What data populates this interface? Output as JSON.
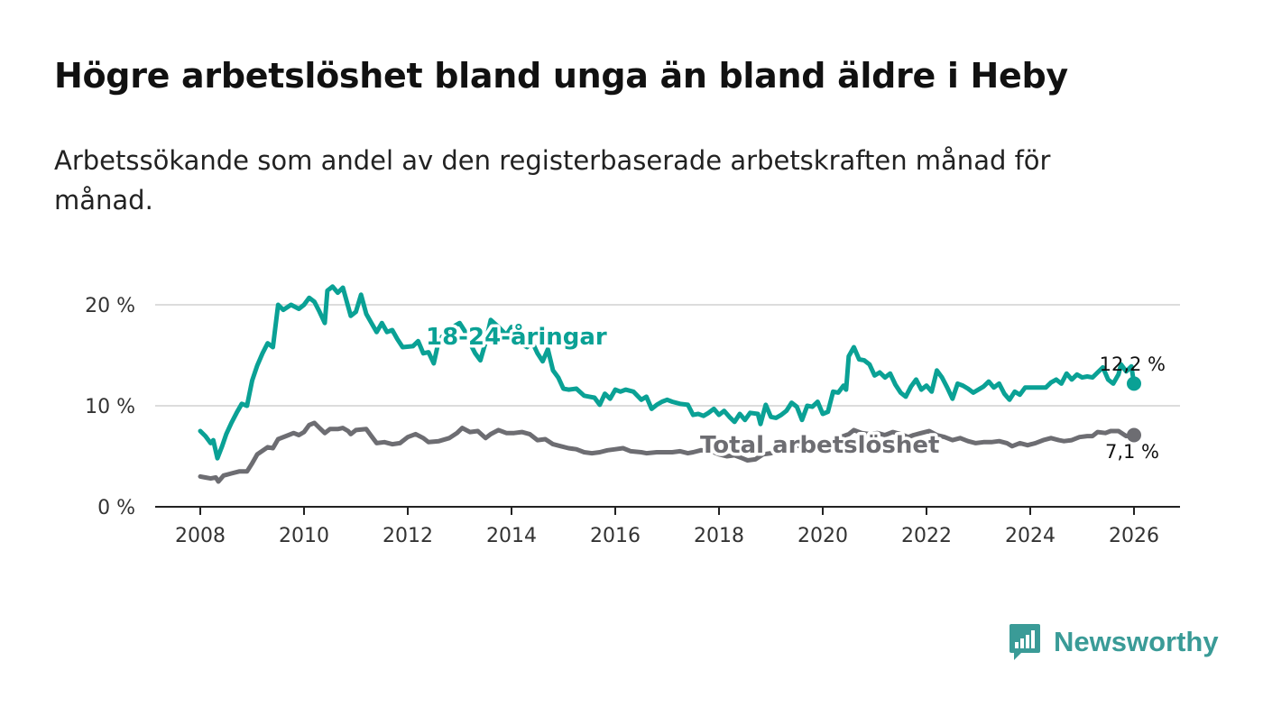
{
  "title": "Högre arbetslöshet bland unga än bland äldre i Heby",
  "subtitle": "Arbetssökande som andel av den registerbaserade arbetskraften månad för månad.",
  "brand": {
    "name": "Newsworthy",
    "color": "#3a9b97",
    "icon": "bar-chart-speech-bubble-icon"
  },
  "chart_data": {
    "type": "line",
    "x_unit": "year",
    "xlim": [
      2008,
      2026
    ],
    "ylim": [
      0,
      20
    ],
    "x_ticks": [
      "2008",
      "2010",
      "2012",
      "2014",
      "2016",
      "2018",
      "2020",
      "2022",
      "2024",
      "2026"
    ],
    "y_ticks": [
      "0 %",
      "10 %",
      "20 %"
    ],
    "y_tick_values": [
      0,
      10,
      20
    ],
    "grid": true,
    "series": [
      {
        "name": "18-24-åringar",
        "color": "#0aa195",
        "end_label": "12,2 %",
        "points": [
          [
            2008.0,
            7.5
          ],
          [
            2008.1,
            7.0
          ],
          [
            2008.2,
            6.3
          ],
          [
            2008.25,
            6.6
          ],
          [
            2008.33,
            4.8
          ],
          [
            2008.42,
            6.0
          ],
          [
            2008.5,
            7.2
          ],
          [
            2008.6,
            8.3
          ],
          [
            2008.7,
            9.3
          ],
          [
            2008.8,
            10.2
          ],
          [
            2008.9,
            10.0
          ],
          [
            2009.0,
            12.5
          ],
          [
            2009.1,
            14.0
          ],
          [
            2009.2,
            15.2
          ],
          [
            2009.3,
            16.2
          ],
          [
            2009.4,
            15.8
          ],
          [
            2009.5,
            20.0
          ],
          [
            2009.6,
            19.5
          ],
          [
            2009.75,
            20.0
          ],
          [
            2009.9,
            19.6
          ],
          [
            2010.0,
            20.0
          ],
          [
            2010.1,
            20.7
          ],
          [
            2010.2,
            20.3
          ],
          [
            2010.3,
            19.3
          ],
          [
            2010.4,
            18.2
          ],
          [
            2010.45,
            21.4
          ],
          [
            2010.55,
            21.8
          ],
          [
            2010.65,
            21.2
          ],
          [
            2010.75,
            21.7
          ],
          [
            2010.9,
            18.9
          ],
          [
            2011.0,
            19.3
          ],
          [
            2011.1,
            21.0
          ],
          [
            2011.2,
            19.1
          ],
          [
            2011.3,
            18.2
          ],
          [
            2011.4,
            17.3
          ],
          [
            2011.5,
            18.2
          ],
          [
            2011.6,
            17.3
          ],
          [
            2011.7,
            17.5
          ],
          [
            2011.8,
            16.6
          ],
          [
            2011.9,
            15.8
          ],
          [
            2012.1,
            15.9
          ],
          [
            2012.2,
            16.4
          ],
          [
            2012.3,
            15.2
          ],
          [
            2012.4,
            15.3
          ],
          [
            2012.5,
            14.2
          ],
          [
            2012.6,
            16.5
          ],
          [
            2012.8,
            17.6
          ],
          [
            2013.0,
            18.2
          ],
          [
            2013.1,
            17.4
          ],
          [
            2013.2,
            16.2
          ],
          [
            2013.3,
            15.2
          ],
          [
            2013.4,
            14.5
          ],
          [
            2013.5,
            16.3
          ],
          [
            2013.6,
            18.5
          ],
          [
            2013.75,
            17.8
          ],
          [
            2013.9,
            17.0
          ],
          [
            2014.0,
            17.8
          ],
          [
            2014.1,
            16.8
          ],
          [
            2014.2,
            16.1
          ],
          [
            2014.3,
            15.8
          ],
          [
            2014.4,
            16.3
          ],
          [
            2014.5,
            15.2
          ],
          [
            2014.6,
            14.4
          ],
          [
            2014.7,
            15.6
          ],
          [
            2014.8,
            13.5
          ],
          [
            2014.9,
            12.8
          ],
          [
            2015.0,
            11.7
          ],
          [
            2015.1,
            11.6
          ],
          [
            2015.25,
            11.7
          ],
          [
            2015.4,
            11.0
          ],
          [
            2015.5,
            10.9
          ],
          [
            2015.6,
            10.8
          ],
          [
            2015.7,
            10.1
          ],
          [
            2015.8,
            11.2
          ],
          [
            2015.9,
            10.7
          ],
          [
            2016.0,
            11.6
          ],
          [
            2016.1,
            11.4
          ],
          [
            2016.2,
            11.6
          ],
          [
            2016.35,
            11.4
          ],
          [
            2016.5,
            10.6
          ],
          [
            2016.6,
            10.9
          ],
          [
            2016.7,
            9.7
          ],
          [
            2016.8,
            10.1
          ],
          [
            2016.9,
            10.4
          ],
          [
            2017.0,
            10.6
          ],
          [
            2017.1,
            10.4
          ],
          [
            2017.25,
            10.2
          ],
          [
            2017.4,
            10.1
          ],
          [
            2017.5,
            9.1
          ],
          [
            2017.6,
            9.2
          ],
          [
            2017.7,
            9.0
          ],
          [
            2017.8,
            9.3
          ],
          [
            2017.9,
            9.7
          ],
          [
            2018.0,
            9.1
          ],
          [
            2018.1,
            9.5
          ],
          [
            2018.2,
            8.9
          ],
          [
            2018.3,
            8.4
          ],
          [
            2018.4,
            9.2
          ],
          [
            2018.5,
            8.6
          ],
          [
            2018.6,
            9.3
          ],
          [
            2018.75,
            9.2
          ],
          [
            2018.8,
            8.2
          ],
          [
            2018.9,
            10.1
          ],
          [
            2019.0,
            8.9
          ],
          [
            2019.1,
            8.8
          ],
          [
            2019.2,
            9.1
          ],
          [
            2019.3,
            9.5
          ],
          [
            2019.4,
            10.3
          ],
          [
            2019.5,
            9.9
          ],
          [
            2019.6,
            8.6
          ],
          [
            2019.7,
            10.0
          ],
          [
            2019.8,
            9.9
          ],
          [
            2019.9,
            10.4
          ],
          [
            2020.0,
            9.2
          ],
          [
            2020.1,
            9.4
          ],
          [
            2020.2,
            11.4
          ],
          [
            2020.3,
            11.3
          ],
          [
            2020.4,
            12.0
          ],
          [
            2020.45,
            11.6
          ],
          [
            2020.5,
            14.9
          ],
          [
            2020.6,
            15.8
          ],
          [
            2020.7,
            14.6
          ],
          [
            2020.8,
            14.5
          ],
          [
            2020.9,
            14.1
          ],
          [
            2021.0,
            13.0
          ],
          [
            2021.1,
            13.3
          ],
          [
            2021.2,
            12.8
          ],
          [
            2021.3,
            13.2
          ],
          [
            2021.4,
            12.1
          ],
          [
            2021.5,
            11.3
          ],
          [
            2021.6,
            10.9
          ],
          [
            2021.7,
            11.9
          ],
          [
            2021.8,
            12.6
          ],
          [
            2021.9,
            11.6
          ],
          [
            2022.0,
            12.0
          ],
          [
            2022.1,
            11.4
          ],
          [
            2022.2,
            13.5
          ],
          [
            2022.3,
            12.8
          ],
          [
            2022.4,
            11.8
          ],
          [
            2022.5,
            10.7
          ],
          [
            2022.6,
            12.2
          ],
          [
            2022.7,
            12.0
          ],
          [
            2022.8,
            11.7
          ],
          [
            2022.9,
            11.3
          ],
          [
            2023.0,
            11.6
          ],
          [
            2023.1,
            11.9
          ],
          [
            2023.2,
            12.4
          ],
          [
            2023.3,
            11.8
          ],
          [
            2023.4,
            12.2
          ],
          [
            2023.5,
            11.2
          ],
          [
            2023.6,
            10.6
          ],
          [
            2023.7,
            11.4
          ],
          [
            2023.8,
            11.1
          ],
          [
            2023.9,
            11.8
          ],
          [
            2024.1,
            11.8
          ],
          [
            2024.3,
            11.8
          ],
          [
            2024.4,
            12.3
          ],
          [
            2024.5,
            12.6
          ],
          [
            2024.6,
            12.2
          ],
          [
            2024.7,
            13.2
          ],
          [
            2024.8,
            12.6
          ],
          [
            2024.9,
            13.1
          ],
          [
            2025.0,
            12.8
          ],
          [
            2025.1,
            12.9
          ],
          [
            2025.2,
            12.8
          ],
          [
            2025.3,
            13.3
          ],
          [
            2025.4,
            13.8
          ],
          [
            2025.5,
            12.6
          ],
          [
            2025.6,
            12.2
          ],
          [
            2025.7,
            13.1
          ],
          [
            2025.75,
            14.1
          ],
          [
            2025.85,
            13.4
          ],
          [
            2025.95,
            13.9
          ],
          [
            2026.0,
            12.2
          ]
        ]
      },
      {
        "name": "Total arbetslöshet",
        "color": "#6d6d72",
        "end_label": "7,1 %",
        "points": [
          [
            2008.0,
            3.0
          ],
          [
            2008.1,
            2.9
          ],
          [
            2008.2,
            2.8
          ],
          [
            2008.3,
            2.9
          ],
          [
            2008.35,
            2.5
          ],
          [
            2008.45,
            3.1
          ],
          [
            2008.6,
            3.3
          ],
          [
            2008.75,
            3.5
          ],
          [
            2008.9,
            3.5
          ],
          [
            2009.0,
            4.3
          ],
          [
            2009.1,
            5.2
          ],
          [
            2009.3,
            5.9
          ],
          [
            2009.4,
            5.8
          ],
          [
            2009.5,
            6.7
          ],
          [
            2009.7,
            7.1
          ],
          [
            2009.8,
            7.3
          ],
          [
            2009.9,
            7.1
          ],
          [
            2010.0,
            7.4
          ],
          [
            2010.1,
            8.1
          ],
          [
            2010.2,
            8.3
          ],
          [
            2010.3,
            7.8
          ],
          [
            2010.4,
            7.3
          ],
          [
            2010.5,
            7.7
          ],
          [
            2010.65,
            7.7
          ],
          [
            2010.75,
            7.8
          ],
          [
            2010.85,
            7.5
          ],
          [
            2010.9,
            7.2
          ],
          [
            2011.0,
            7.6
          ],
          [
            2011.2,
            7.7
          ],
          [
            2011.3,
            7.0
          ],
          [
            2011.4,
            6.3
          ],
          [
            2011.55,
            6.4
          ],
          [
            2011.7,
            6.2
          ],
          [
            2011.85,
            6.3
          ],
          [
            2012.0,
            6.9
          ],
          [
            2012.15,
            7.2
          ],
          [
            2012.3,
            6.8
          ],
          [
            2012.4,
            6.4
          ],
          [
            2012.6,
            6.5
          ],
          [
            2012.8,
            6.8
          ],
          [
            2012.95,
            7.3
          ],
          [
            2013.05,
            7.8
          ],
          [
            2013.2,
            7.4
          ],
          [
            2013.35,
            7.5
          ],
          [
            2013.5,
            6.8
          ],
          [
            2013.6,
            7.2
          ],
          [
            2013.75,
            7.6
          ],
          [
            2013.9,
            7.3
          ],
          [
            2014.05,
            7.3
          ],
          [
            2014.2,
            7.4
          ],
          [
            2014.35,
            7.2
          ],
          [
            2014.5,
            6.6
          ],
          [
            2014.65,
            6.7
          ],
          [
            2014.8,
            6.2
          ],
          [
            2014.95,
            6.0
          ],
          [
            2015.1,
            5.8
          ],
          [
            2015.25,
            5.7
          ],
          [
            2015.4,
            5.4
          ],
          [
            2015.55,
            5.3
          ],
          [
            2015.7,
            5.4
          ],
          [
            2015.85,
            5.6
          ],
          [
            2016.0,
            5.7
          ],
          [
            2016.15,
            5.8
          ],
          [
            2016.3,
            5.5
          ],
          [
            2016.5,
            5.4
          ],
          [
            2016.6,
            5.3
          ],
          [
            2016.8,
            5.4
          ],
          [
            2016.95,
            5.4
          ],
          [
            2017.1,
            5.4
          ],
          [
            2017.25,
            5.5
          ],
          [
            2017.4,
            5.3
          ],
          [
            2017.5,
            5.4
          ],
          [
            2017.65,
            5.6
          ],
          [
            2017.85,
            5.5
          ],
          [
            2018.0,
            5.2
          ],
          [
            2018.15,
            5.0
          ],
          [
            2018.3,
            5.1
          ],
          [
            2018.45,
            4.8
          ],
          [
            2018.55,
            4.6
          ],
          [
            2018.7,
            4.7
          ],
          [
            2018.85,
            5.2
          ],
          [
            2019.0,
            5.3
          ],
          [
            2019.15,
            5.7
          ],
          [
            2019.3,
            6.0
          ],
          [
            2019.45,
            6.2
          ],
          [
            2019.6,
            5.9
          ],
          [
            2019.75,
            6.2
          ],
          [
            2019.9,
            6.3
          ],
          [
            2020.05,
            6.2
          ],
          [
            2020.2,
            6.6
          ],
          [
            2020.35,
            6.9
          ],
          [
            2020.5,
            7.2
          ],
          [
            2020.6,
            7.6
          ],
          [
            2020.75,
            7.3
          ],
          [
            2020.9,
            7.2
          ],
          [
            2021.05,
            7.3
          ],
          [
            2021.2,
            7.1
          ],
          [
            2021.35,
            7.4
          ],
          [
            2021.5,
            7.2
          ],
          [
            2021.65,
            6.9
          ],
          [
            2021.75,
            7.1
          ],
          [
            2021.9,
            7.3
          ],
          [
            2022.05,
            7.5
          ],
          [
            2022.2,
            7.1
          ],
          [
            2022.35,
            6.9
          ],
          [
            2022.5,
            6.6
          ],
          [
            2022.65,
            6.8
          ],
          [
            2022.8,
            6.5
          ],
          [
            2022.95,
            6.3
          ],
          [
            2023.1,
            6.4
          ],
          [
            2023.25,
            6.4
          ],
          [
            2023.4,
            6.5
          ],
          [
            2023.55,
            6.3
          ],
          [
            2023.65,
            6.0
          ],
          [
            2023.8,
            6.3
          ],
          [
            2023.95,
            6.1
          ],
          [
            2024.1,
            6.3
          ],
          [
            2024.25,
            6.6
          ],
          [
            2024.4,
            6.8
          ],
          [
            2024.55,
            6.6
          ],
          [
            2024.65,
            6.5
          ],
          [
            2024.8,
            6.6
          ],
          [
            2024.95,
            6.9
          ],
          [
            2025.1,
            7.0
          ],
          [
            2025.2,
            7.0
          ],
          [
            2025.3,
            7.4
          ],
          [
            2025.45,
            7.3
          ],
          [
            2025.55,
            7.5
          ],
          [
            2025.7,
            7.5
          ],
          [
            2025.85,
            7.0
          ],
          [
            2026.0,
            7.1
          ]
        ]
      }
    ]
  }
}
